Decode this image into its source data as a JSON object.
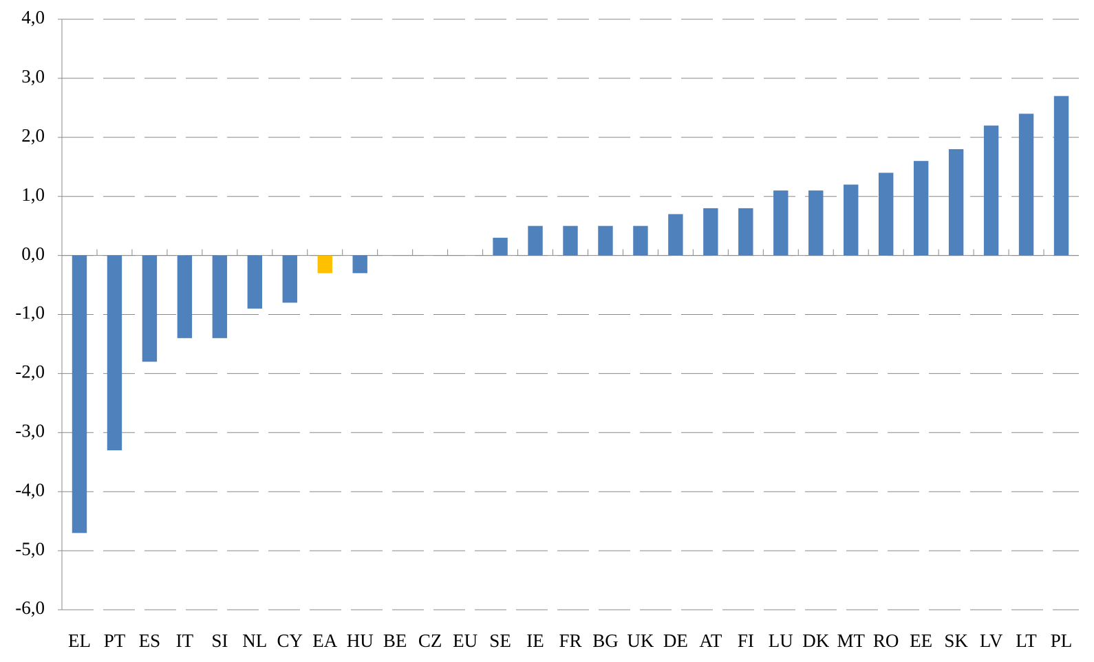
{
  "chart_data": {
    "type": "bar",
    "categories": [
      "EL",
      "PT",
      "ES",
      "IT",
      "SI",
      "NL",
      "CY",
      "EA",
      "HU",
      "BE",
      "CZ",
      "EU",
      "SE",
      "IE",
      "FR",
      "BG",
      "UK",
      "DE",
      "AT",
      "FI",
      "LU",
      "DK",
      "MT",
      "RO",
      "EE",
      "SK",
      "LV",
      "LT",
      "PL"
    ],
    "values": [
      -4.7,
      -3.3,
      -1.8,
      -1.4,
      -1.4,
      -0.9,
      -0.8,
      -0.3,
      -0.3,
      0,
      0,
      0,
      0.3,
      0.5,
      0.5,
      0.5,
      0.5,
      0.7,
      0.8,
      0.8,
      1.1,
      1.1,
      1.2,
      1.4,
      1.6,
      1.8,
      2.2,
      2.4,
      2.7
    ],
    "colors": [
      "#4f81bd",
      "#4f81bd",
      "#4f81bd",
      "#4f81bd",
      "#4f81bd",
      "#4f81bd",
      "#4f81bd",
      "#ffc000",
      "#4f81bd",
      "#4f81bd",
      "#4f81bd",
      "#4f81bd",
      "#4f81bd",
      "#4f81bd",
      "#4f81bd",
      "#4f81bd",
      "#4f81bd",
      "#4f81bd",
      "#4f81bd",
      "#4f81bd",
      "#4f81bd",
      "#4f81bd",
      "#4f81bd",
      "#4f81bd",
      "#4f81bd",
      "#4f81bd",
      "#4f81bd",
      "#4f81bd",
      "#4f81bd"
    ],
    "ylim": [
      -6,
      4
    ],
    "yticks": [
      {
        "value": -6,
        "label": "-6,0"
      },
      {
        "value": -5,
        "label": "-5,0"
      },
      {
        "value": -4,
        "label": "-4,0"
      },
      {
        "value": -3,
        "label": "-3,0"
      },
      {
        "value": -2,
        "label": "-2,0"
      },
      {
        "value": -1,
        "label": "-1,0"
      },
      {
        "value": 0,
        "label": "0,0"
      },
      {
        "value": 1,
        "label": "1,0"
      },
      {
        "value": 2,
        "label": "2,0"
      },
      {
        "value": 3,
        "label": "3,0"
      },
      {
        "value": 4,
        "label": "4,0"
      }
    ],
    "grid": true
  }
}
